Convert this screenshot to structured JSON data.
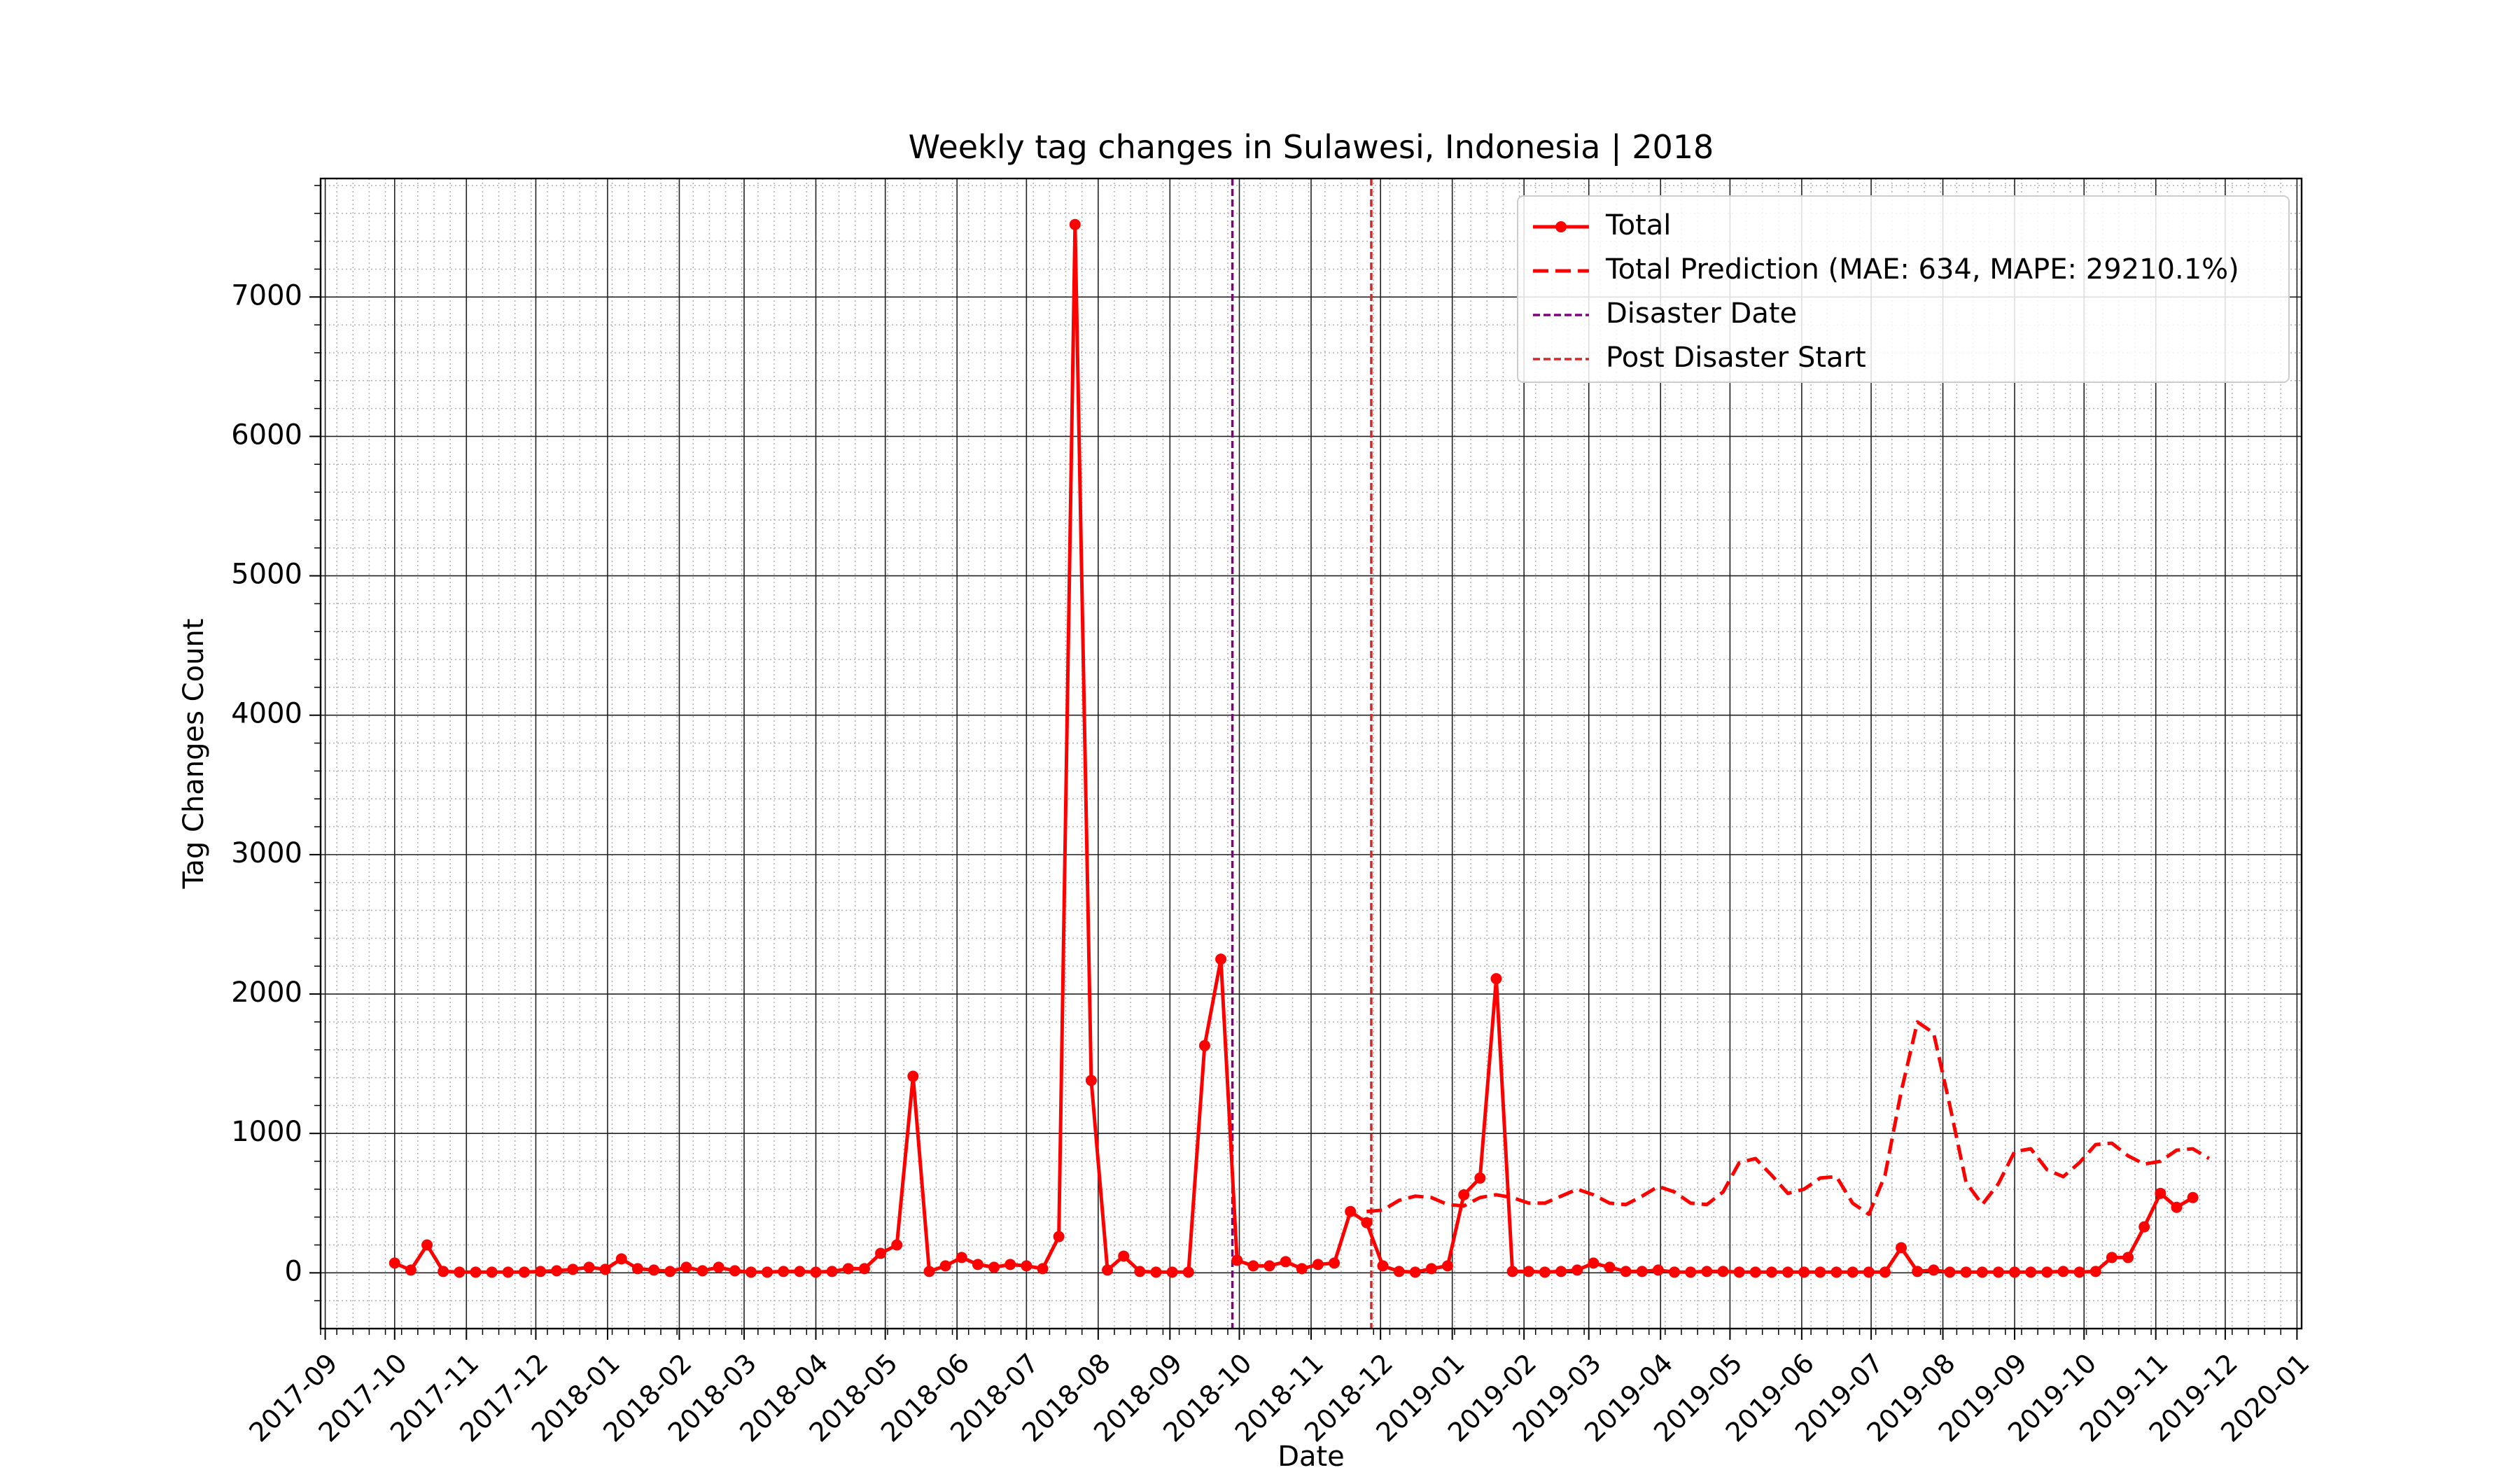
{
  "chart_data": {
    "type": "line",
    "title": "Weekly tag changes in Sulawesi, Indonesia | 2018",
    "xlabel": "Date",
    "ylabel": "Tag Changes Count",
    "grid": true,
    "legend_position": "top-right",
    "xlim": [
      "2017-08-30",
      "2020-01-03"
    ],
    "ylim": [
      -400,
      7850
    ],
    "x_ticks": [
      "2017-09-01",
      "2017-10-01",
      "2017-11-01",
      "2017-12-01",
      "2018-01-01",
      "2018-02-01",
      "2018-03-01",
      "2018-04-01",
      "2018-05-01",
      "2018-06-01",
      "2018-07-01",
      "2018-08-01",
      "2018-09-01",
      "2018-10-01",
      "2018-11-01",
      "2018-12-01",
      "2019-01-01",
      "2019-02-01",
      "2019-03-01",
      "2019-04-01",
      "2019-05-01",
      "2019-06-01",
      "2019-07-01",
      "2019-08-01",
      "2019-09-01",
      "2019-10-01",
      "2019-11-01",
      "2019-12-01",
      "2020-01-01"
    ],
    "x_tick_labels": [
      "2017-09",
      "2017-10",
      "2017-11",
      "2017-12",
      "2018-01",
      "2018-02",
      "2018-03",
      "2018-04",
      "2018-05",
      "2018-06",
      "2018-07",
      "2018-08",
      "2018-09",
      "2018-10",
      "2018-11",
      "2018-12",
      "2019-01",
      "2019-02",
      "2019-03",
      "2019-04",
      "2019-05",
      "2019-06",
      "2019-07",
      "2019-08",
      "2019-09",
      "2019-10",
      "2019-11",
      "2019-12",
      "2020-01"
    ],
    "y_ticks": [
      0,
      1000,
      2000,
      3000,
      4000,
      5000,
      6000,
      7000
    ],
    "y_tick_labels": [
      "0",
      "1000",
      "2000",
      "3000",
      "4000",
      "5000",
      "6000",
      "7000"
    ],
    "series": [
      {
        "name": "Total",
        "color": "#ff0000",
        "style": "solid",
        "marker": "circle",
        "x": [
          "2017-10-01",
          "2017-10-08",
          "2017-10-15",
          "2017-10-22",
          "2017-10-29",
          "2017-11-05",
          "2017-11-12",
          "2017-11-19",
          "2017-11-26",
          "2017-12-03",
          "2017-12-10",
          "2017-12-17",
          "2017-12-24",
          "2017-12-31",
          "2018-01-07",
          "2018-01-14",
          "2018-01-21",
          "2018-01-28",
          "2018-02-04",
          "2018-02-11",
          "2018-02-18",
          "2018-02-25",
          "2018-03-04",
          "2018-03-11",
          "2018-03-18",
          "2018-03-25",
          "2018-04-01",
          "2018-04-08",
          "2018-04-15",
          "2018-04-22",
          "2018-04-29",
          "2018-05-06",
          "2018-05-13",
          "2018-05-20",
          "2018-05-27",
          "2018-06-03",
          "2018-06-10",
          "2018-06-17",
          "2018-06-24",
          "2018-07-01",
          "2018-07-08",
          "2018-07-15",
          "2018-07-22",
          "2018-07-29",
          "2018-08-05",
          "2018-08-12",
          "2018-08-19",
          "2018-08-26",
          "2018-09-02",
          "2018-09-09",
          "2018-09-16",
          "2018-09-23",
          "2018-09-30",
          "2018-10-07",
          "2018-10-14",
          "2018-10-21",
          "2018-10-28",
          "2018-11-04",
          "2018-11-11",
          "2018-11-18",
          "2018-11-25",
          "2018-12-02",
          "2018-12-09",
          "2018-12-16",
          "2018-12-23",
          "2018-12-30",
          "2019-01-06",
          "2019-01-13",
          "2019-01-20",
          "2019-01-27",
          "2019-02-03",
          "2019-02-10",
          "2019-02-17",
          "2019-02-24",
          "2019-03-03",
          "2019-03-10",
          "2019-03-17",
          "2019-03-24",
          "2019-03-31",
          "2019-04-07",
          "2019-04-14",
          "2019-04-21",
          "2019-04-28",
          "2019-05-05",
          "2019-05-12",
          "2019-05-19",
          "2019-05-26",
          "2019-06-02",
          "2019-06-09",
          "2019-06-16",
          "2019-06-23",
          "2019-06-30",
          "2019-07-07",
          "2019-07-14",
          "2019-07-21",
          "2019-07-28",
          "2019-08-04",
          "2019-08-11",
          "2019-08-18",
          "2019-08-25",
          "2019-09-01",
          "2019-09-08",
          "2019-09-15",
          "2019-09-22",
          "2019-09-29",
          "2019-10-06",
          "2019-10-13",
          "2019-10-20",
          "2019-10-27",
          "2019-11-03",
          "2019-11-10",
          "2019-11-17"
        ],
        "y": [
          70,
          20,
          200,
          10,
          5,
          5,
          5,
          5,
          5,
          10,
          15,
          25,
          40,
          25,
          100,
          30,
          20,
          10,
          40,
          15,
          40,
          15,
          5,
          5,
          10,
          10,
          5,
          10,
          30,
          30,
          140,
          200,
          1410,
          10,
          50,
          110,
          60,
          40,
          60,
          50,
          30,
          260,
          7520,
          1380,
          20,
          120,
          10,
          5,
          5,
          5,
          1630,
          2250,
          90,
          50,
          50,
          80,
          30,
          60,
          70,
          440,
          360,
          50,
          10,
          5,
          30,
          50,
          560,
          680,
          2110,
          10,
          10,
          5,
          10,
          20,
          70,
          40,
          10,
          10,
          20,
          5,
          5,
          10,
          10,
          5,
          5,
          5,
          5,
          5,
          5,
          5,
          5,
          5,
          5,
          180,
          10,
          20,
          5,
          5,
          5,
          5,
          5,
          5,
          5,
          10,
          5,
          10,
          110,
          110,
          330,
          570,
          470,
          540
        ]
      },
      {
        "name": "Total Prediction (MAE: 634, MAPE: 29210.1%)",
        "color": "#ff0000",
        "style": "dashed",
        "x": [
          "2018-11-25",
          "2018-12-02",
          "2018-12-09",
          "2018-12-16",
          "2018-12-23",
          "2018-12-30",
          "2019-01-06",
          "2019-01-13",
          "2019-01-20",
          "2019-01-27",
          "2019-02-03",
          "2019-02-10",
          "2019-02-17",
          "2019-02-24",
          "2019-03-03",
          "2019-03-10",
          "2019-03-17",
          "2019-03-24",
          "2019-03-31",
          "2019-04-07",
          "2019-04-14",
          "2019-04-21",
          "2019-04-28",
          "2019-05-05",
          "2019-05-12",
          "2019-05-19",
          "2019-05-26",
          "2019-06-02",
          "2019-06-09",
          "2019-06-16",
          "2019-06-23",
          "2019-06-30",
          "2019-07-07",
          "2019-07-14",
          "2019-07-21",
          "2019-07-28",
          "2019-08-04",
          "2019-08-11",
          "2019-08-18",
          "2019-08-25",
          "2019-09-01",
          "2019-09-08",
          "2019-09-15",
          "2019-09-22",
          "2019-09-29",
          "2019-10-06",
          "2019-10-13",
          "2019-10-20",
          "2019-10-27",
          "2019-11-03",
          "2019-11-10",
          "2019-11-17",
          "2019-11-24"
        ],
        "y": [
          440,
          450,
          520,
          550,
          540,
          490,
          480,
          540,
          560,
          540,
          500,
          500,
          550,
          600,
          560,
          500,
          490,
          550,
          620,
          580,
          500,
          490,
          580,
          790,
          820,
          700,
          570,
          600,
          680,
          690,
          500,
          420,
          700,
          1300,
          1800,
          1720,
          1200,
          650,
          490,
          640,
          870,
          890,
          740,
          690,
          790,
          920,
          930,
          840,
          780,
          800,
          880,
          890,
          820
        ]
      }
    ],
    "vertical_lines": [
      {
        "name": "Disaster Date",
        "x": "2018-09-28",
        "color": "#800080",
        "style": "dashed"
      },
      {
        "name": "Post Disaster Start",
        "x": "2018-11-27",
        "color": "#d62728",
        "style": "dashed"
      }
    ]
  }
}
